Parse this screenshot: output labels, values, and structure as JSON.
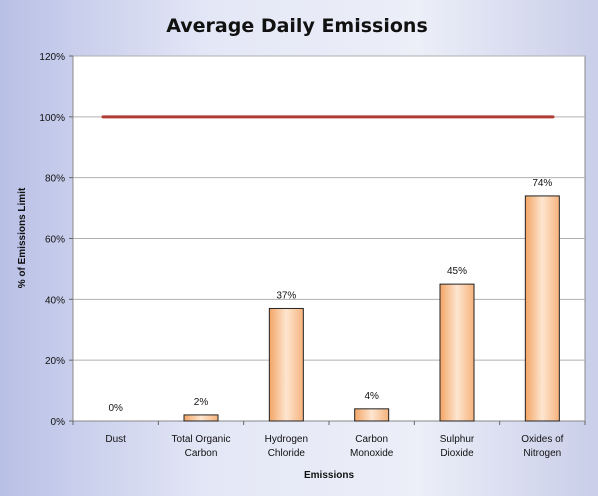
{
  "chart_data": {
    "type": "bar",
    "title": "Average Daily Emissions",
    "xlabel": "Emissions",
    "ylabel": "% of Emissions  Limit",
    "categories": [
      [
        "Dust"
      ],
      [
        "Total Organic",
        "Carbon"
      ],
      [
        "Hydrogen",
        "Chloride"
      ],
      [
        "Carbon",
        "Monoxide"
      ],
      [
        "Sulphur",
        "Dioxide"
      ],
      [
        "Oxides of",
        "Nitrogen"
      ]
    ],
    "values": [
      0,
      2,
      37,
      4,
      45,
      74
    ],
    "data_labels": [
      "0%",
      "2%",
      "37%",
      "4%",
      "45%",
      "74%"
    ],
    "ylim": [
      0,
      120
    ],
    "yticks": [
      0,
      20,
      40,
      60,
      80,
      100,
      120
    ],
    "ytick_labels": [
      "0%",
      "20%",
      "40%",
      "60%",
      "80%",
      "100%",
      "120%"
    ],
    "reference_line": {
      "value": 100,
      "color": "#b03a35"
    },
    "grid": true,
    "bar_color": "#f6b37c",
    "legend": "none"
  }
}
